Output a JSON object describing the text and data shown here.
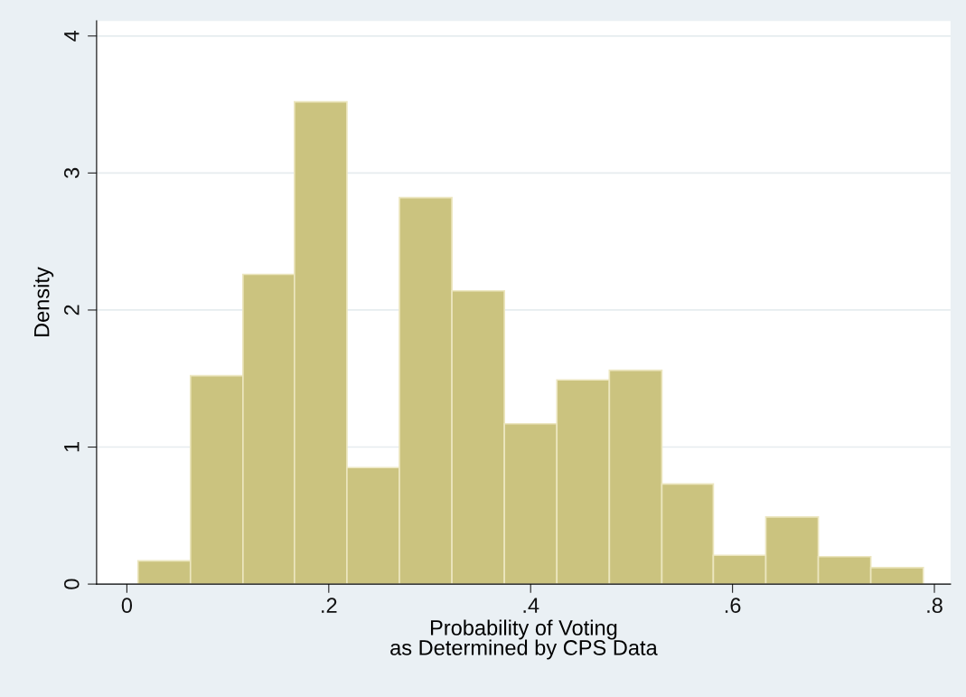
{
  "chart_data": {
    "type": "histogram",
    "xlabel": "Probability of Voting\nas Determined by CPS Data",
    "ylabel": "Density",
    "bins": [
      0.011,
      0.063,
      0.115,
      0.166,
      0.218,
      0.27,
      0.322,
      0.374,
      0.426,
      0.478,
      0.53,
      0.581,
      0.633,
      0.685,
      0.737,
      0.789
    ],
    "values": [
      0.17,
      1.52,
      2.26,
      3.52,
      0.85,
      2.82,
      2.14,
      1.17,
      1.49,
      1.56,
      0.73,
      0.21,
      0.49,
      0.2,
      0.12
    ],
    "color": "#cbc37f",
    "xlim": [
      -0.03,
      0.816
    ],
    "ylim": [
      0,
      4.11
    ],
    "xticks": [
      {
        "value": 0,
        "label": "0"
      },
      {
        "value": 0.2,
        "label": ".2"
      },
      {
        "value": 0.4,
        "label": ".4"
      },
      {
        "value": 0.6,
        "label": ".6"
      },
      {
        "value": 0.8,
        "label": ".8"
      }
    ],
    "yticks": [
      0,
      1,
      2,
      3,
      4
    ],
    "grid": "y"
  }
}
